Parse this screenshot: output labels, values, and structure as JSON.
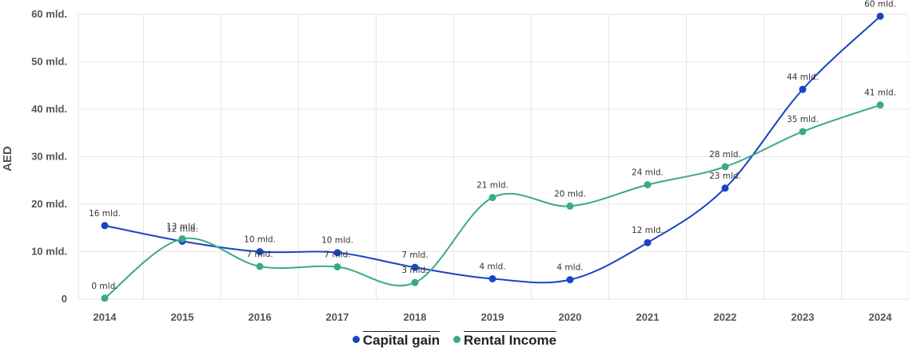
{
  "chart_data": {
    "type": "line",
    "ylabel": "AED",
    "xlabel": "",
    "categories": [
      "2014",
      "2015",
      "2016",
      "2017",
      "2018",
      "2019",
      "2020",
      "2021",
      "2022",
      "2023",
      "2024"
    ],
    "ylim": [
      0,
      60
    ],
    "yticks": [
      0,
      10,
      20,
      30,
      40,
      50,
      60
    ],
    "ytick_labels": [
      "0",
      "10 mld.",
      "20 mld.",
      "30 mld.",
      "40 mld.",
      "50 mld.",
      "60 mld."
    ],
    "grid": true,
    "legend_position": "bottom-center",
    "series": [
      {
        "name": "Capital gain",
        "color": "#1a44c4",
        "values": [
          15.5,
          12.2,
          10.0,
          9.8,
          6.7,
          4.3,
          4.1,
          11.9,
          23.4,
          44.2,
          59.6
        ],
        "labels": [
          "16 mld.",
          "12 mld.",
          "10 mld.",
          "10 mld.",
          "7 mld.",
          "4 mld.",
          "4 mld.",
          "12 mld.",
          "23 mld.",
          "44 mld.",
          "60 mld."
        ]
      },
      {
        "name": "Rental Income",
        "color": "#3aaa85",
        "values": [
          0.2,
          12.7,
          6.9,
          6.8,
          3.5,
          21.4,
          19.6,
          24.1,
          27.9,
          35.3,
          40.9
        ],
        "labels": [
          "0 mld.",
          "13 mld.",
          "7 mld.",
          "7 mld.",
          "3 mld.",
          "21 mld.",
          "20 mld.",
          "24 mld.",
          "28 mld.",
          "35 mld.",
          "41 mld."
        ]
      }
    ]
  }
}
